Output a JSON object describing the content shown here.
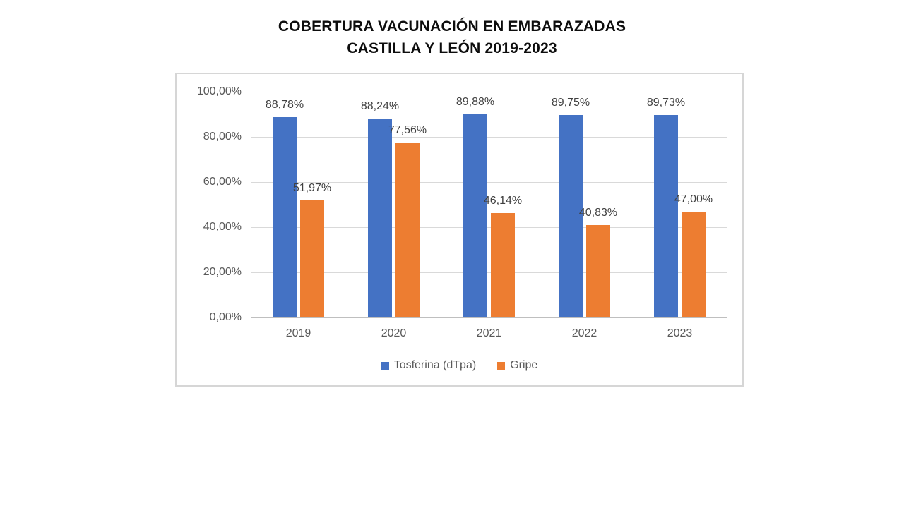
{
  "title": {
    "line1": "COBERTURA VACUNACIÓN EN EMBARAZADAS",
    "line2": "CASTILLA Y LEÓN 2019-2023"
  },
  "chart_data": {
    "type": "bar",
    "title": "COBERTURA VACUNACIÓN EN EMBARAZADAS CASTILLA Y LEÓN 2019-2023",
    "categories": [
      "2019",
      "2020",
      "2021",
      "2022",
      "2023"
    ],
    "series": [
      {
        "name": "Tosferina (dTpa)",
        "color": "#4472C4",
        "values": [
          88.78,
          88.24,
          89.88,
          89.75,
          89.73
        ],
        "labels": [
          "88,78%",
          "88,24%",
          "89,88%",
          "89,75%",
          "89,73%"
        ]
      },
      {
        "name": "Gripe",
        "color": "#ED7D31",
        "values": [
          51.97,
          77.56,
          46.14,
          40.83,
          47.0
        ],
        "labels": [
          "51,97%",
          "77,56%",
          "46,14%",
          "40,83%",
          "47,00%"
        ]
      }
    ],
    "xlabel": "",
    "ylabel": "",
    "ylim": [
      0,
      100
    ],
    "y_tick_values": [
      0,
      20,
      40,
      60,
      80,
      100
    ],
    "y_tick_labels": [
      "0,00%",
      "20,00%",
      "40,00%",
      "60,00%",
      "80,00%",
      "100,00%"
    ],
    "grid": true,
    "legend_position": "bottom",
    "colors": {
      "grid": "#D9D9D9",
      "axis_text": "#595959",
      "data_label_text": "#404040",
      "chart_border": "#D6D6D6",
      "background": "#FFFFFF"
    }
  }
}
